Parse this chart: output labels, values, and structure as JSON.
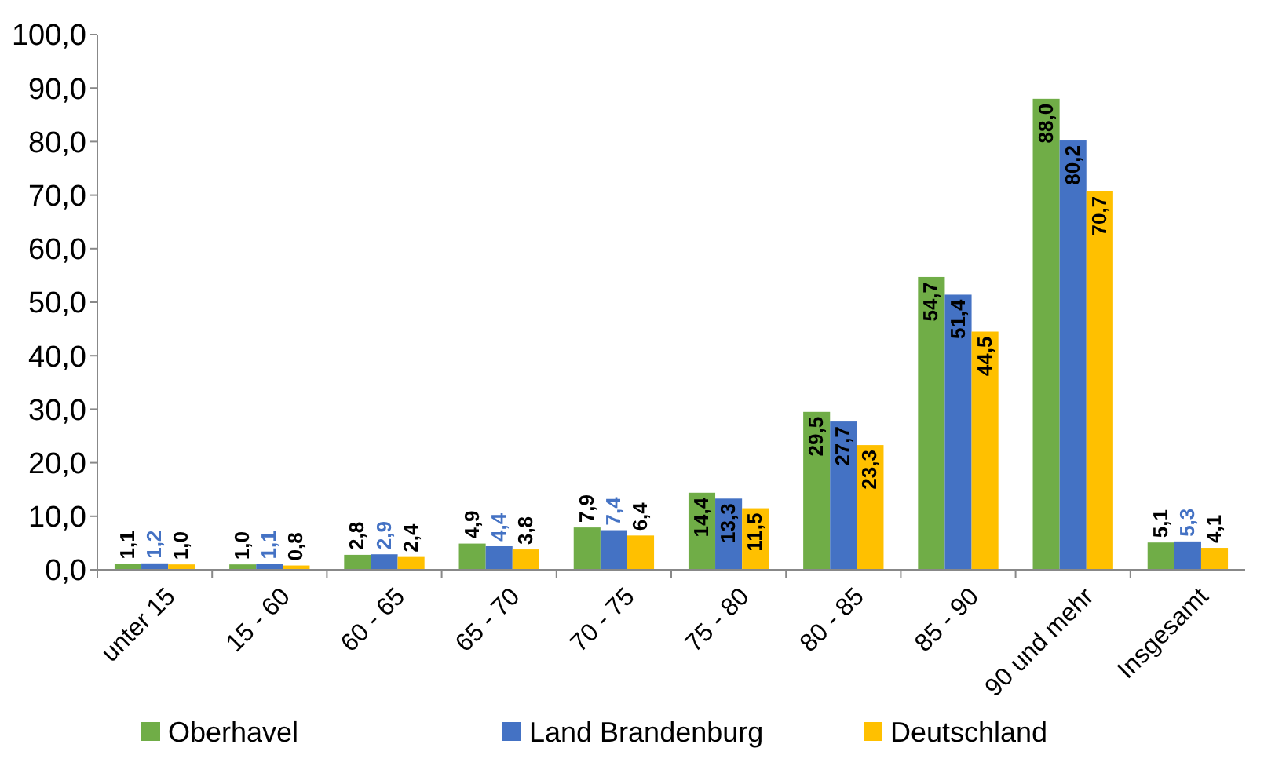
{
  "chart_data": {
    "type": "bar",
    "categories": [
      "unter 15",
      "15 - 60",
      "60 - 65",
      "65 - 70",
      "70 - 75",
      "75 - 80",
      "80 - 85",
      "85 - 90",
      "90 und mehr",
      "Insgesamt"
    ],
    "series": [
      {
        "name": "Oberhavel",
        "color": "#70ad47",
        "values": [
          1.1,
          1.0,
          2.8,
          4.9,
          7.9,
          14.4,
          29.5,
          54.7,
          88.0,
          5.1
        ],
        "value_labels": [
          "1,1",
          "1,0",
          "2,8",
          "4,9",
          "7,9",
          "14,4",
          "29,5",
          "54,7",
          "88,0",
          "5,1"
        ]
      },
      {
        "name": "Land Brandenburg",
        "color": "#4472c4",
        "values": [
          1.2,
          1.1,
          2.9,
          4.4,
          7.4,
          13.3,
          27.7,
          51.4,
          80.2,
          5.3
        ],
        "value_labels": [
          "1,2",
          "1,1",
          "2,9",
          "4,4",
          "7,4",
          "13,3",
          "27,7",
          "51,4",
          "80,2",
          "5,3"
        ]
      },
      {
        "name": "Deutschland",
        "color": "#ffc000",
        "values": [
          1.0,
          0.8,
          2.4,
          3.8,
          6.4,
          11.5,
          23.3,
          44.5,
          70.7,
          4.1
        ],
        "value_labels": [
          "1,0",
          "0,8",
          "2,4",
          "3,8",
          "6,4",
          "11,5",
          "23,3",
          "44,5",
          "70,7",
          "4,1"
        ]
      }
    ],
    "ylim": [
      0,
      100
    ],
    "yticks": [
      {
        "value": 0,
        "label": "0,0"
      },
      {
        "value": 10,
        "label": "10,0"
      },
      {
        "value": 20,
        "label": "20,0"
      },
      {
        "value": 30,
        "label": "30,0"
      },
      {
        "value": 40,
        "label": "40,0"
      },
      {
        "value": 50,
        "label": "50,0"
      },
      {
        "value": 60,
        "label": "60,0"
      },
      {
        "value": 70,
        "label": "70,0"
      },
      {
        "value": 80,
        "label": "80,0"
      },
      {
        "value": 90,
        "label": "90,0"
      },
      {
        "value": 100,
        "label": "100,0"
      }
    ],
    "legend": "bottom"
  }
}
